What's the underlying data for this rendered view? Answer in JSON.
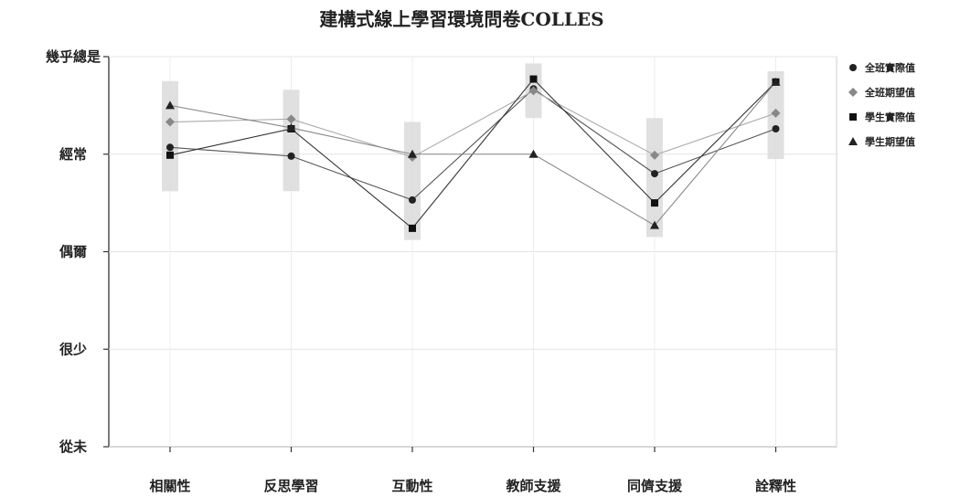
{
  "chart_data": {
    "type": "line",
    "title": "建構式線上學習環境問卷COLLES",
    "categories": [
      "相關性",
      "反思學習",
      "互動性",
      "教師支援",
      "同儕支援",
      "詮釋性"
    ],
    "y_scale": {
      "ticks": [
        {
          "label": "幾乎總是",
          "value": 5
        },
        {
          "label": "經常",
          "value": 4
        },
        {
          "label": "偶爾",
          "value": 3
        },
        {
          "label": "很少",
          "value": 2
        },
        {
          "label": "從未",
          "value": 1
        }
      ],
      "ylim": [
        1,
        5
      ]
    },
    "grid": true,
    "legend_position": "right",
    "series": [
      {
        "name": "全班實際值",
        "marker": "circle",
        "color": "#222222",
        "line_color": "#555555",
        "values": [
          4.07,
          3.98,
          3.53,
          4.67,
          3.8,
          4.26
        ]
      },
      {
        "name": "全班期望值",
        "marker": "diamond",
        "color": "#888888",
        "line_color": "#aaaaaa",
        "values": [
          4.33,
          4.36,
          3.97,
          4.65,
          3.99,
          4.42
        ]
      },
      {
        "name": "學生實際值",
        "marker": "square",
        "color": "#111111",
        "line_color": "#333333",
        "values": [
          3.99,
          4.26,
          3.24,
          4.77,
          3.5,
          4.74
        ]
      },
      {
        "name": "學生期望值",
        "marker": "triangle",
        "color": "#222222",
        "line_color": "#888888",
        "values": [
          4.5,
          4.27,
          4.0,
          4.0,
          3.27,
          4.74
        ]
      }
    ],
    "error_bands": [
      {
        "category": "相關性",
        "low": 3.62,
        "high": 4.75
      },
      {
        "category": "反思學習",
        "low": 3.62,
        "high": 4.66
      },
      {
        "category": "互動性",
        "low": 3.12,
        "high": 4.33
      },
      {
        "category": "教師支援",
        "low": 4.37,
        "high": 4.93
      },
      {
        "category": "同儕支援",
        "low": 3.15,
        "high": 4.37
      },
      {
        "category": "詮釋性",
        "low": 3.95,
        "high": 4.85
      }
    ]
  }
}
